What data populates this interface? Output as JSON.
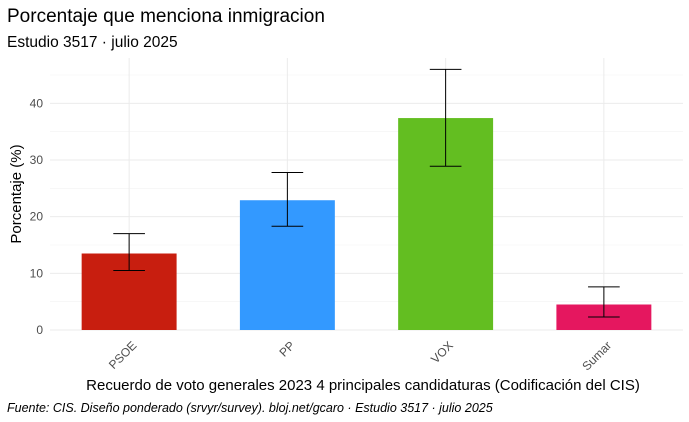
{
  "chart_data": {
    "type": "bar",
    "title": "Porcentaje que menciona inmigracion",
    "subtitle": "Estudio 3517 · julio 2025",
    "xlabel": "Recuerdo de voto generales 2023 4 principales candidaturas (Codificación del CIS)",
    "ylabel": "Porcentaje (%)",
    "caption": "Fuente: CIS. Diseño ponderado (srvyr/survey). bloj.net/gcaro · Estudio 3517 · julio 2025",
    "ylim": [
      0,
      48
    ],
    "yticks": [
      "0",
      "10",
      "20",
      "30",
      "40"
    ],
    "grid": true,
    "categories": [
      "PSOE",
      "PP",
      "VOX",
      "Sumar"
    ],
    "values": [
      13.5,
      22.9,
      37.4,
      4.5
    ],
    "error_low": [
      10.5,
      18.3,
      28.9,
      2.3
    ],
    "error_high": [
      17.0,
      27.8,
      46.0,
      7.6
    ],
    "colors": [
      "#c81e0f",
      "#3399ff",
      "#63be21",
      "#e5175f"
    ]
  }
}
